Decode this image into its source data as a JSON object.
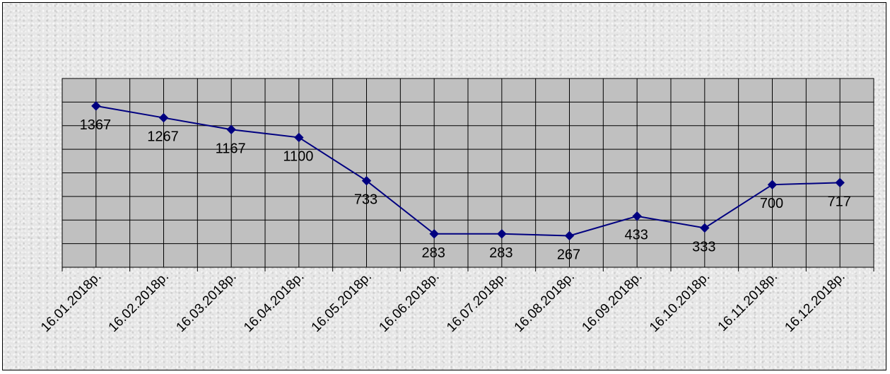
{
  "chart_data": {
    "type": "line",
    "categories": [
      "16.01.2018р.",
      "16.02.2018р.",
      "16.03.2018р.",
      "16.04.2018р.",
      "16.05.2018р.",
      "16.06.2018р.",
      "16.07.2018р.",
      "16.08.2018р.",
      "16.09.2018р.",
      "16.10.2018р.",
      "16.11.2018р.",
      "16.12.2018р."
    ],
    "series": [
      {
        "values": [
          1367,
          1267,
          1167,
          1100,
          733,
          283,
          283,
          267,
          433,
          333,
          700,
          717
        ]
      }
    ],
    "data_labels": [
      "1367",
      "1267",
      "1167",
      "1100",
      "733",
      "283",
      "283",
      "267",
      "433",
      "333",
      "700",
      "717"
    ],
    "ylim": [
      0,
      1600
    ],
    "grid": true,
    "legend": false,
    "colors": {
      "line": "#000080",
      "marker": "#000080",
      "plot_background": "#c0c0c0",
      "grid": "#000000"
    }
  }
}
